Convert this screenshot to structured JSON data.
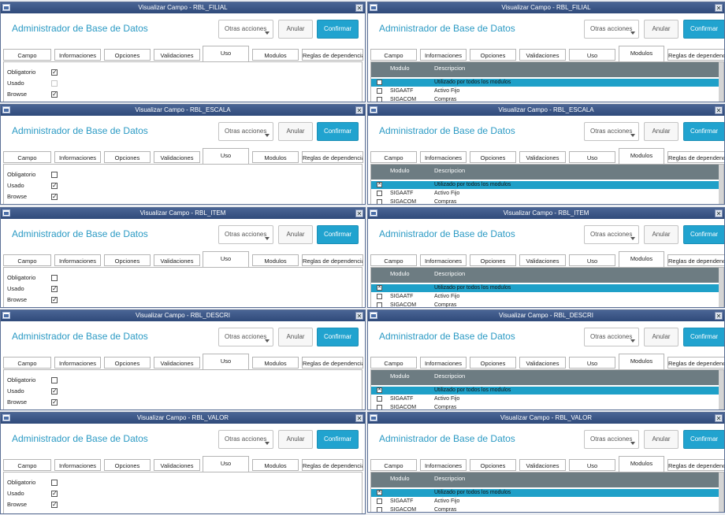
{
  "left_windows": [
    {
      "title": "Visualizar Campo - RBL_FILIAL"
    },
    {
      "title": "Visualizar Campo - RBL_ESCALA"
    },
    {
      "title": "Visualizar Campo - RBL_ITEM"
    },
    {
      "title": "Visualizar Campo - RBL_DESCRI"
    },
    {
      "title": "Visualizar Campo - RBL_VALOR"
    }
  ],
  "right_windows": [
    {
      "title": "Visualizar Campo - RBL_FILIAL"
    },
    {
      "title": "Visualizar Campo - RBL_ESCALA"
    },
    {
      "title": "Visualizar Campo - RBL_ITEM"
    },
    {
      "title": "Visualizar Campo - RBL_DESCRI"
    },
    {
      "title": "Visualizar Campo - RBL_VALOR"
    }
  ],
  "common": {
    "app_title": "Administrador de Base de Datos",
    "otras_acciones": "Otras acciones",
    "anular": "Anular",
    "confirmar": "Confirmar",
    "close_glyph": "✕",
    "tabs": [
      "Campo",
      "Informaciones",
      "Opciones",
      "Validaciones",
      "Uso",
      "Modulos",
      "Reglas de dependencia"
    ]
  },
  "uso": {
    "fields": [
      "Obligatorio",
      "Usado",
      "Browse"
    ],
    "states": [
      [
        true,
        false,
        true
      ],
      [
        false,
        true,
        true
      ],
      [
        false,
        true,
        true
      ],
      [
        false,
        true,
        true
      ],
      [
        false,
        true,
        true
      ]
    ]
  },
  "modulos": {
    "headers": [
      "Modulo",
      "Descripcion"
    ],
    "rows": [
      {
        "modulo": "",
        "descripcion": "Utilizado por todos los modulos"
      },
      {
        "modulo": "SIGAATF",
        "descripcion": "Activo Fijo"
      },
      {
        "modulo": "SIGACOM",
        "descripcion": "Compras"
      }
    ],
    "first_row_checked": [
      false,
      true,
      true,
      true,
      true
    ]
  },
  "colors": {
    "accent": "#21a3cf",
    "titlebar": "#2f4a7a",
    "grid_header": "#6d7c82"
  }
}
